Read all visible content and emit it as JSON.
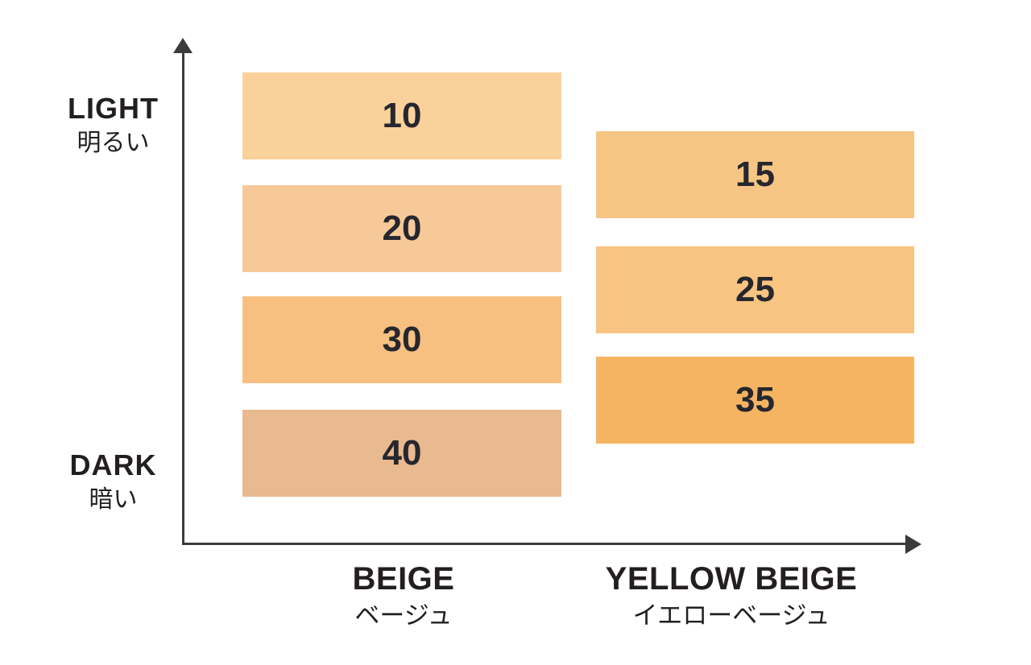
{
  "chart_data": {
    "type": "table",
    "description_of_layout": "Two columns of color swatch bars arranged on a vertical light-to-dark axis; swatches stagger so numbers read 10,15,20,25,30,35,40 from light to dark",
    "y_axis": {
      "top_label": "LIGHT",
      "top_label_ja": "明るい",
      "bottom_label": "DARK",
      "bottom_label_ja": "暗い"
    },
    "categories": [
      "BEIGE",
      "YELLOW BEIGE"
    ],
    "categories_ja": [
      "ベージュ",
      "イエローベージュ"
    ],
    "series": [
      {
        "name": "BEIGE",
        "values": [
          10,
          20,
          30,
          40
        ],
        "colors": [
          "#FBD19B",
          "#F8C998",
          "#F7C080",
          "#E9B98F"
        ]
      },
      {
        "name": "YELLOW BEIGE",
        "values": [
          15,
          25,
          35
        ],
        "colors": [
          "#F7C583",
          "#F8C481",
          "#F5B462"
        ]
      }
    ],
    "order_light_to_dark": [
      10,
      15,
      20,
      25,
      30,
      35,
      40
    ],
    "legend_position": "none",
    "grid": false
  },
  "axis": {
    "light": {
      "en": "LIGHT",
      "ja": "明るい"
    },
    "dark": {
      "en": "DARK",
      "ja": "暗い"
    }
  },
  "columns": {
    "beige": {
      "label_en": "BEIGE",
      "label_ja": "ベージュ",
      "bars": [
        {
          "value": "10",
          "color": "#FBD19B"
        },
        {
          "value": "20",
          "color": "#F8C998"
        },
        {
          "value": "30",
          "color": "#F7C080"
        },
        {
          "value": "40",
          "color": "#E9B98F"
        }
      ]
    },
    "yellow_beige": {
      "label_en": "YELLOW BEIGE",
      "label_ja": "イエローベージュ",
      "bars": [
        {
          "value": "15",
          "color": "#F7C583"
        },
        {
          "value": "25",
          "color": "#F8C481"
        },
        {
          "value": "35",
          "color": "#F5B462"
        }
      ]
    }
  },
  "colors": {
    "axis": "#3B3B3B",
    "number_text": "#26262E",
    "label_text": "#231F20",
    "background": "#FFFFFF"
  }
}
